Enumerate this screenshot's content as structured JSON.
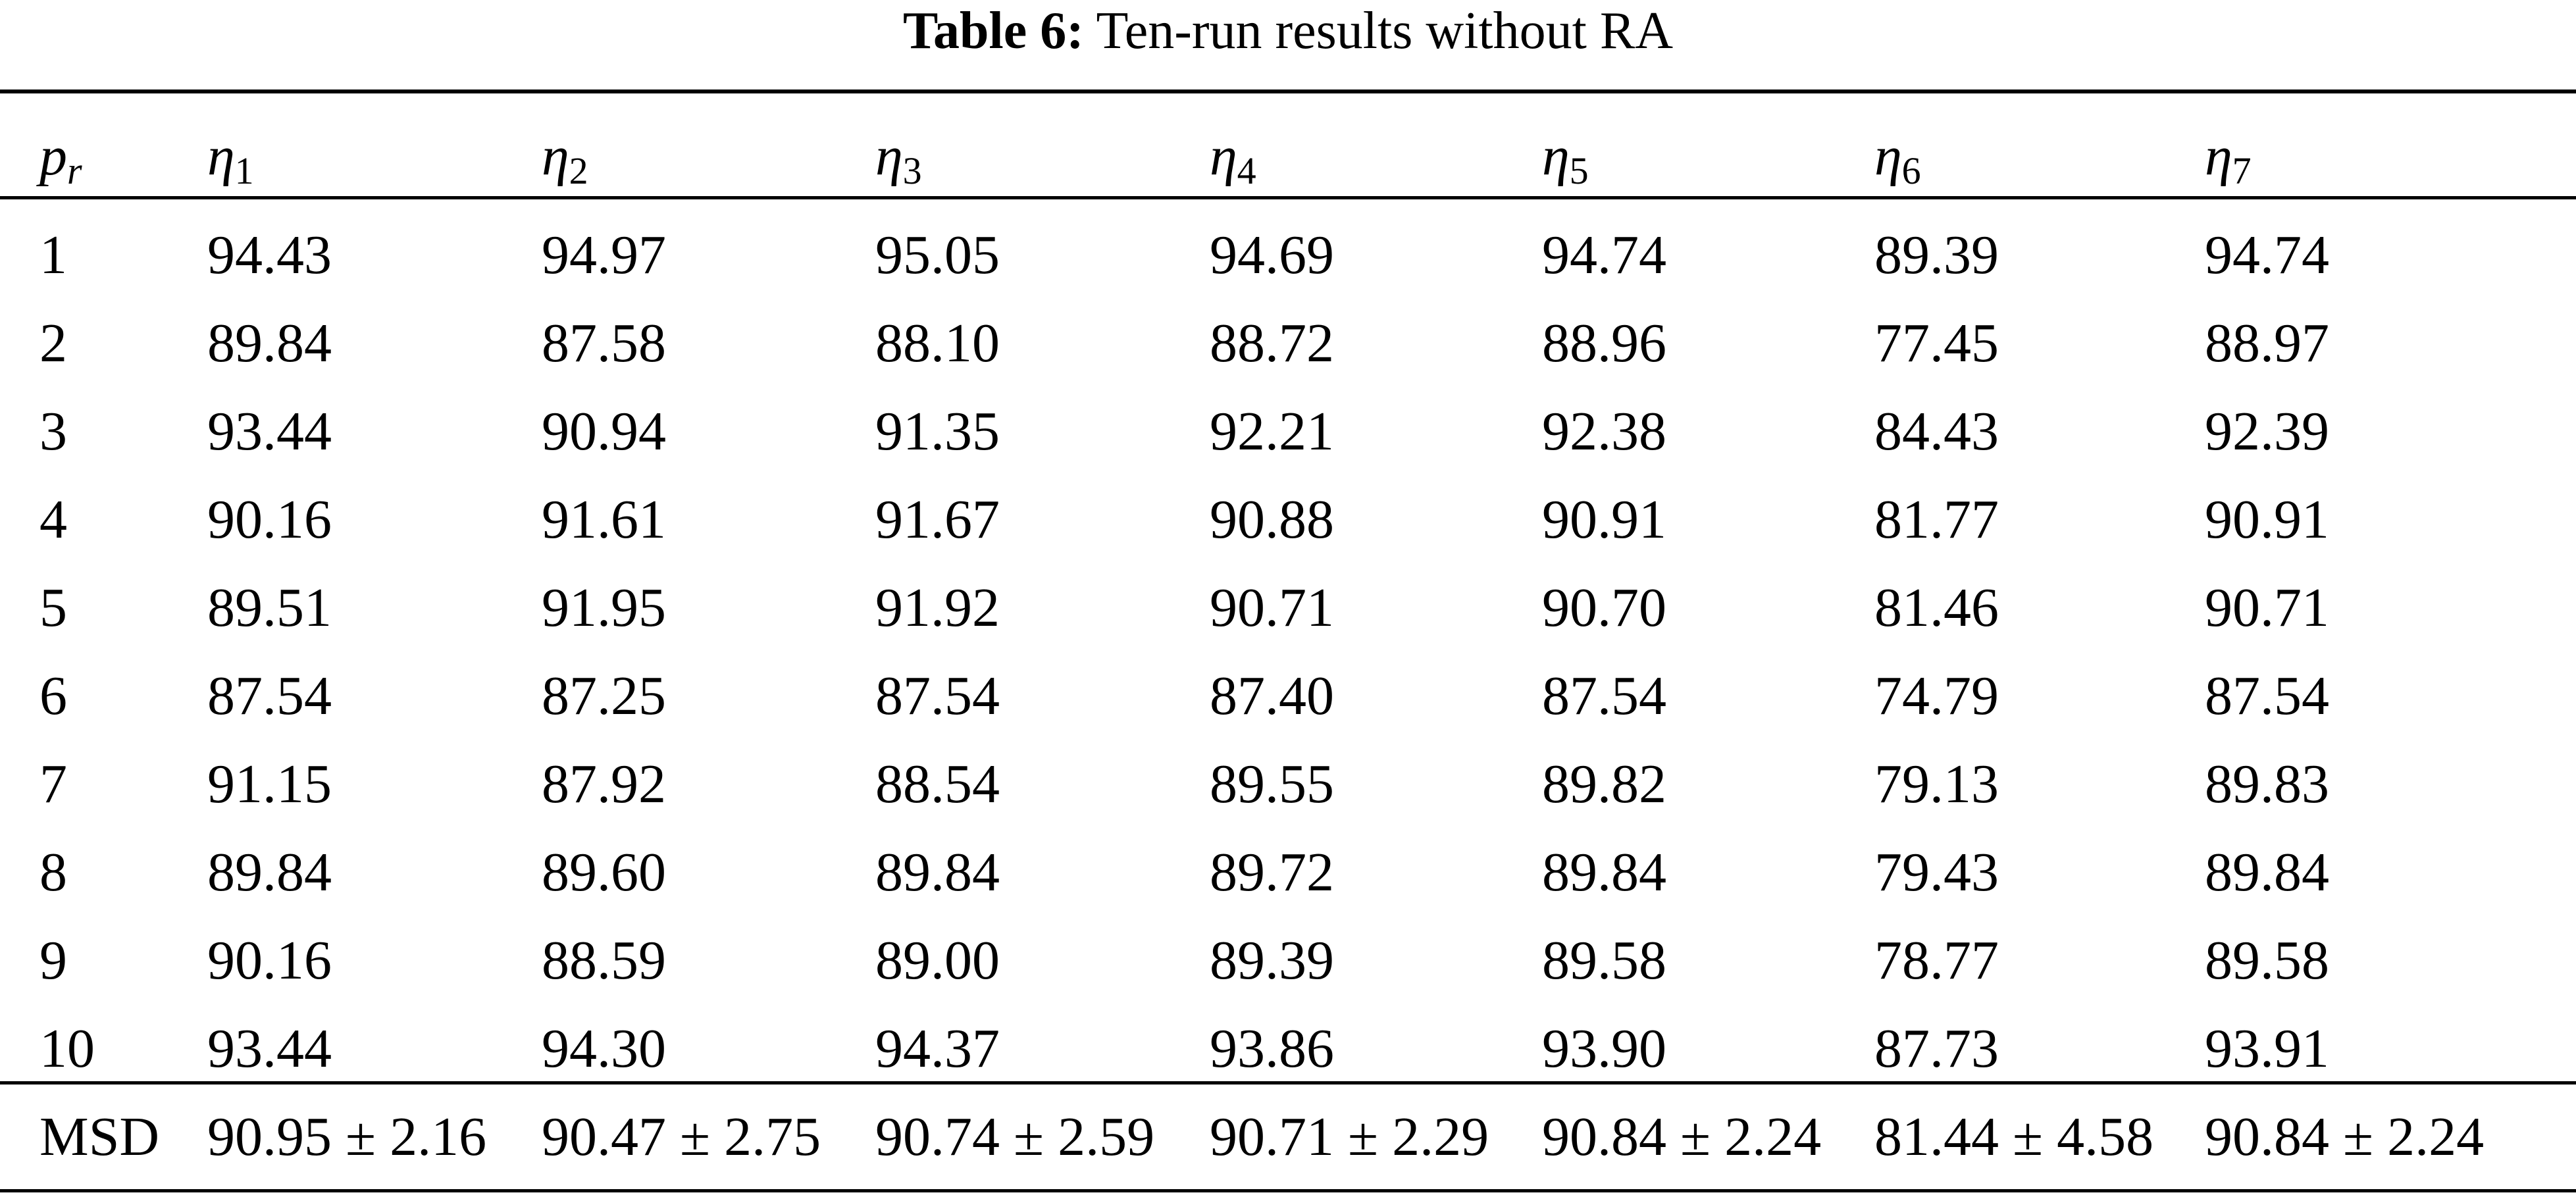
{
  "caption": {
    "label": "Table 6:",
    "text": "Ten-run results without RA"
  },
  "header": [
    {
      "symbol": "p",
      "sub": "r"
    },
    {
      "symbol": "η",
      "sub": "1"
    },
    {
      "symbol": "η",
      "sub": "2"
    },
    {
      "symbol": "η",
      "sub": "3"
    },
    {
      "symbol": "η",
      "sub": "4"
    },
    {
      "symbol": "η",
      "sub": "5"
    },
    {
      "symbol": "η",
      "sub": "6"
    },
    {
      "symbol": "η",
      "sub": "7"
    }
  ],
  "rows": [
    [
      "1",
      "94.43",
      "94.97",
      "95.05",
      "94.69",
      "94.74",
      "89.39",
      "94.74"
    ],
    [
      "2",
      "89.84",
      "87.58",
      "88.10",
      "88.72",
      "88.96",
      "77.45",
      "88.97"
    ],
    [
      "3",
      "93.44",
      "90.94",
      "91.35",
      "92.21",
      "92.38",
      "84.43",
      "92.39"
    ],
    [
      "4",
      "90.16",
      "91.61",
      "91.67",
      "90.88",
      "90.91",
      "81.77",
      "90.91"
    ],
    [
      "5",
      "89.51",
      "91.95",
      "91.92",
      "90.71",
      "90.70",
      "81.46",
      "90.71"
    ],
    [
      "6",
      "87.54",
      "87.25",
      "87.54",
      "87.40",
      "87.54",
      "74.79",
      "87.54"
    ],
    [
      "7",
      "91.15",
      "87.92",
      "88.54",
      "89.55",
      "89.82",
      "79.13",
      "89.83"
    ],
    [
      "8",
      "89.84",
      "89.60",
      "89.84",
      "89.72",
      "89.84",
      "79.43",
      "89.84"
    ],
    [
      "9",
      "90.16",
      "88.59",
      "89.00",
      "89.39",
      "89.58",
      "78.77",
      "89.58"
    ],
    [
      "10",
      "93.44",
      "94.30",
      "94.37",
      "93.86",
      "93.90",
      "87.73",
      "93.91"
    ]
  ],
  "msd": {
    "label": "MSD",
    "values": [
      "90.95 ± 2.16",
      "90.47 ± 2.75",
      "90.74 ± 2.59",
      "90.71 ± 2.29",
      "90.84 ± 2.24",
      "81.44 ± 4.58",
      "90.84 ± 2.24"
    ]
  }
}
